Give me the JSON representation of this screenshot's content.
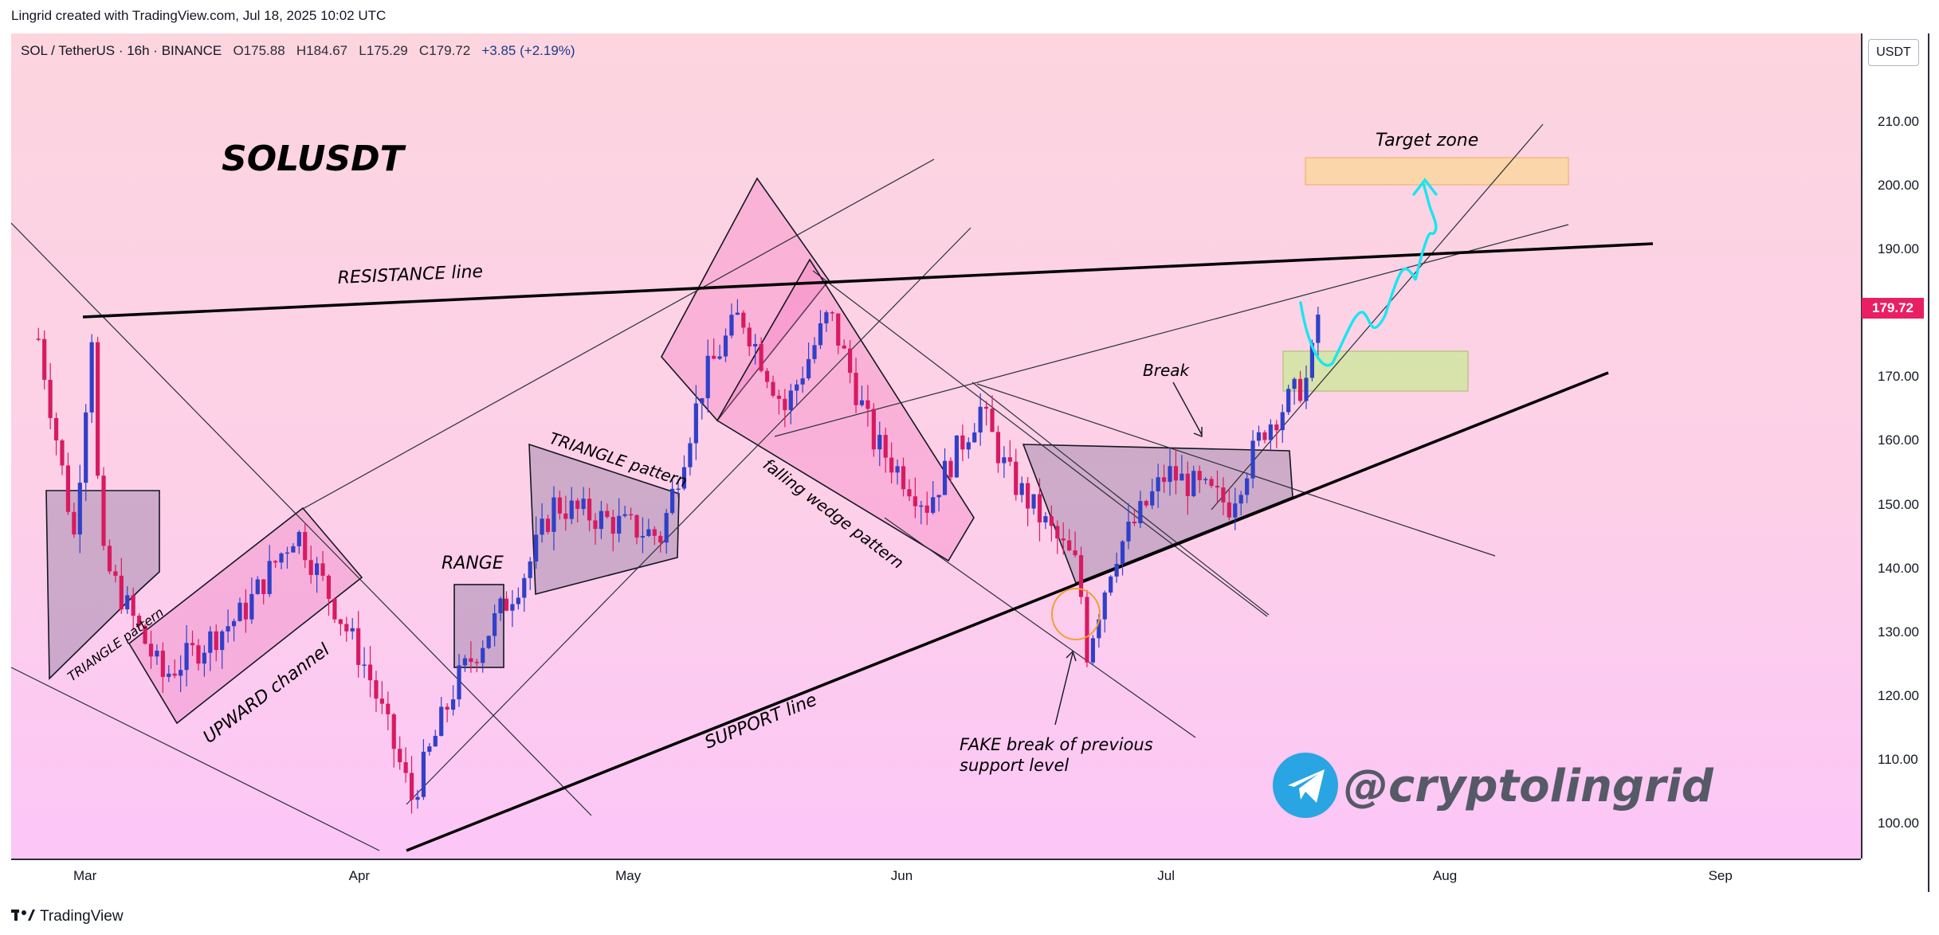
{
  "header": {
    "credit": "Lingrid created with TradingView.com, Jul 18, 2025 10:02 UTC"
  },
  "symbol_bar": {
    "symbol": "SOL / TetherUS · 16h · BINANCE",
    "open": "O175.88",
    "high": "H184.67",
    "low": "L175.29",
    "close": "C179.72",
    "change": "+3.85 (+2.19%)"
  },
  "currency_badge": "USDT",
  "last_price": "179.72",
  "branding": {
    "tv_logo": "TradingView",
    "handle": "@cryptolingrid",
    "icon": "telegram-icon"
  },
  "colors": {
    "bull": "#3040c8",
    "bear": "#d81b60",
    "accent_cyan": "#18e6f0",
    "target_zone": "#fbd7a5",
    "support_zone": "#d3e6a5",
    "price_tag": "#e91e63"
  },
  "chart_data": {
    "type": "candlestick",
    "title": "SOLUSDT",
    "symbol": "SOL / TetherUS",
    "timeframe": "16h",
    "exchange": "BINANCE",
    "ylim": [
      93,
      219
    ],
    "y_ticks": [
      "100.00",
      "110.00",
      "120.00",
      "130.00",
      "140.00",
      "150.00",
      "160.00",
      "170.00",
      "180.00",
      "190.00",
      "200.00",
      "210.00"
    ],
    "x_ticks": [
      "Mar",
      "Apr",
      "May",
      "Jun",
      "Jul",
      "Aug",
      "Sep"
    ],
    "close_path": [
      [
        "2025-02-24",
        176
      ],
      [
        "2025-02-28",
        145
      ],
      [
        "2025-03-02",
        177
      ],
      [
        "2025-03-03",
        142
      ],
      [
        "2025-03-10",
        123
      ],
      [
        "2025-03-19",
        133
      ],
      [
        "2025-03-25",
        146
      ],
      [
        "2025-04-02",
        124
      ],
      [
        "2025-04-07",
        104
      ],
      [
        "2025-04-12",
        122
      ],
      [
        "2025-04-20",
        140
      ],
      [
        "2025-04-23",
        150
      ],
      [
        "2025-05-05",
        145
      ],
      [
        "2025-05-10",
        170
      ],
      [
        "2025-05-14",
        180
      ],
      [
        "2025-05-19",
        165
      ],
      [
        "2025-05-24",
        180
      ],
      [
        "2025-05-29",
        160
      ],
      [
        "2025-06-04",
        150
      ],
      [
        "2025-06-10",
        165
      ],
      [
        "2025-06-13",
        155
      ],
      [
        "2025-06-21",
        140
      ],
      [
        "2025-06-22",
        127
      ],
      [
        "2025-06-25",
        142
      ],
      [
        "2025-07-01",
        155
      ],
      [
        "2025-07-08",
        150
      ],
      [
        "2025-07-12",
        162
      ],
      [
        "2025-07-17",
        170
      ],
      [
        "2025-07-18",
        179.72
      ]
    ],
    "annotations": [
      "SOLUSDT",
      "RESISTANCE line",
      "SUPPORT line",
      "TRIANGLE pattern",
      "UPWARD channel",
      "RANGE",
      "TRIANGLE pattern",
      "falling wedge pattern",
      "Break",
      "FAKE break of previous",
      "support level",
      "Target zone"
    ],
    "zones": [
      {
        "name": "Target zone",
        "y": [
          199,
          203
        ]
      },
      {
        "name": "support zone",
        "y": [
          167,
          173
        ]
      }
    ],
    "last_price": 179.72,
    "grid": false,
    "legend": "none"
  }
}
